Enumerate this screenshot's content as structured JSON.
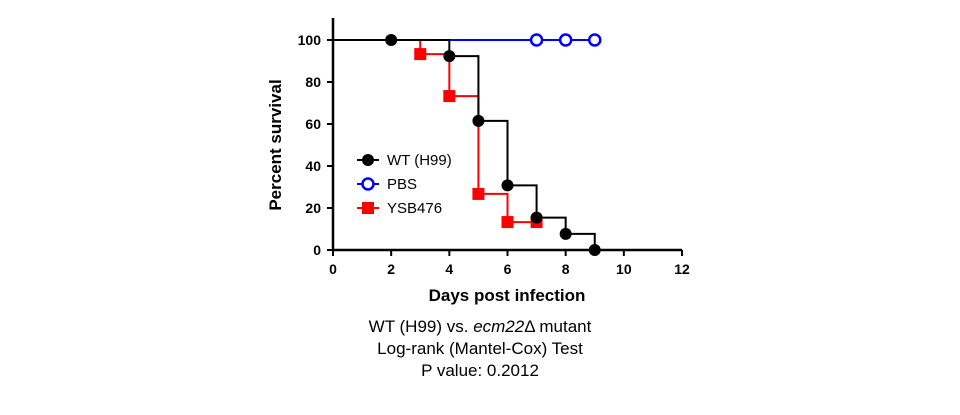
{
  "chart_data": {
    "type": "line",
    "subtype": "kaplan-meier step survival curve",
    "xlabel": "Days post infection",
    "ylabel": "Percent survival",
    "xlim": [
      0,
      12
    ],
    "ylim": [
      0,
      100
    ],
    "xticks": [
      0,
      2,
      4,
      6,
      8,
      10,
      12
    ],
    "yticks": [
      0,
      20,
      40,
      60,
      80,
      100
    ],
    "grid": false,
    "legend_position": "center-left",
    "series": [
      {
        "name": "WT (H99)",
        "color": "#000000",
        "marker": "filled-circle",
        "steps": [
          [
            0,
            100
          ],
          [
            4,
            92.3
          ],
          [
            5,
            61.5
          ],
          [
            6,
            30.8
          ],
          [
            7,
            15.4
          ],
          [
            8,
            7.7
          ],
          [
            9,
            0
          ],
          [
            12,
            0
          ]
        ],
        "markers": [
          [
            2,
            100
          ],
          [
            4,
            92.3
          ],
          [
            5,
            61.5
          ],
          [
            6,
            30.8
          ],
          [
            7,
            15.4
          ],
          [
            8,
            7.7
          ],
          [
            9,
            0
          ]
        ]
      },
      {
        "name": "PBS",
        "color": "#0000ff",
        "marker": "open-circle",
        "steps": [
          [
            0,
            100
          ],
          [
            9,
            100
          ]
        ],
        "markers": [
          [
            7,
            100
          ],
          [
            8,
            100
          ],
          [
            9,
            100
          ]
        ]
      },
      {
        "name": "YSB476",
        "color": "#ff0000",
        "marker": "filled-square",
        "steps": [
          [
            0,
            100
          ],
          [
            3,
            93.3
          ],
          [
            4,
            73.3
          ],
          [
            5,
            26.7
          ],
          [
            6,
            13.3
          ],
          [
            7,
            13.3
          ]
        ],
        "markers": [
          [
            3,
            93.3
          ],
          [
            4,
            73.3
          ],
          [
            5,
            26.7
          ],
          [
            6,
            13.3
          ],
          [
            7,
            13.3
          ]
        ]
      }
    ]
  },
  "caption": {
    "line1_prefix": "WT (H99) vs. ",
    "line1_gene": "ecm22",
    "line1_delta": "Δ",
    "line1_suffix": " mutant",
    "line2": "Log-rank (Mantel-Cox) Test",
    "line3": "P value: 0.2012"
  }
}
